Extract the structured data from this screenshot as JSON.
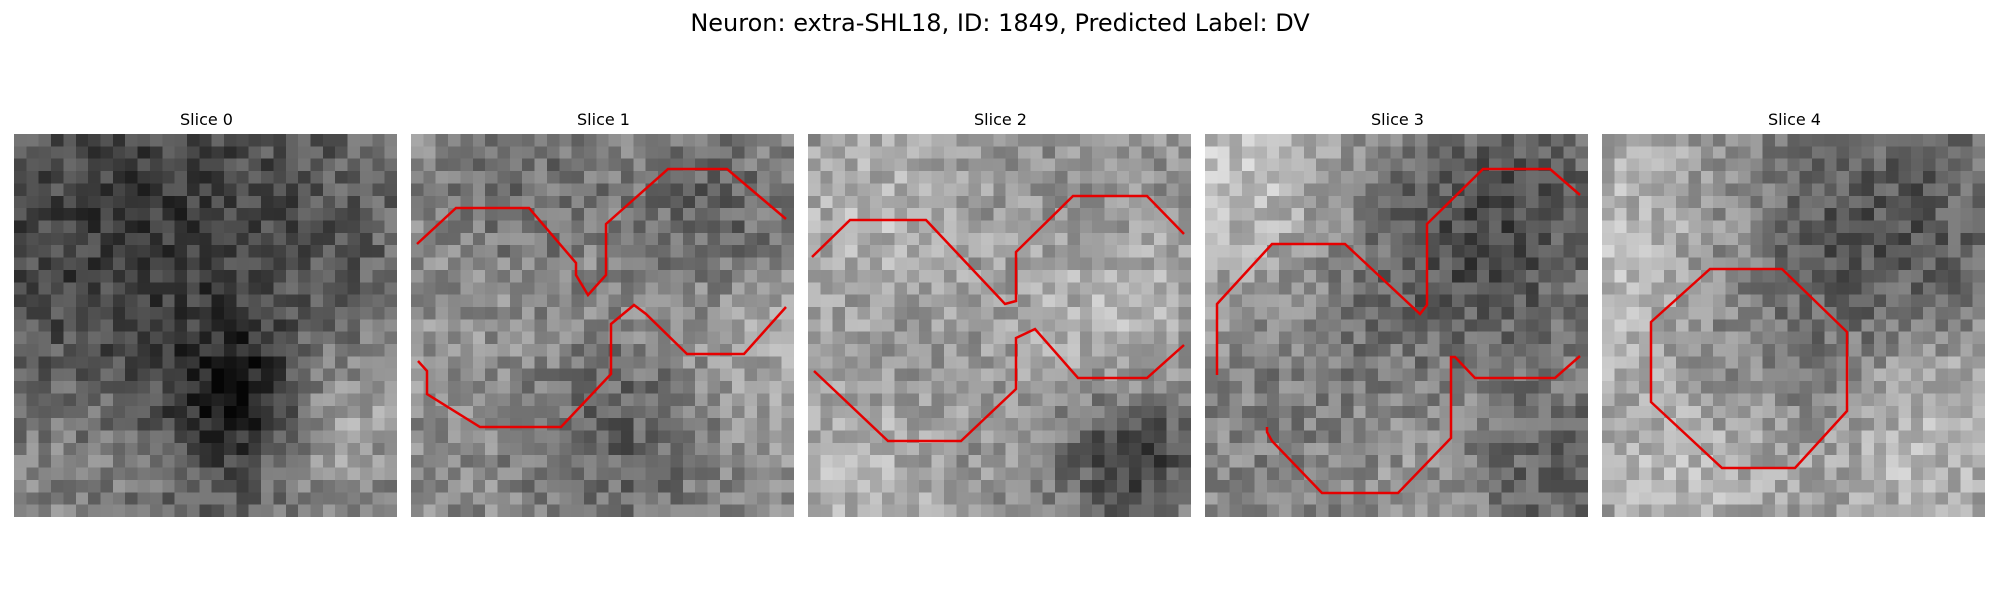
{
  "figure": {
    "title": "Neuron: extra-SHL18, ID: 1849, Predicted Label: DV"
  },
  "panels": [
    {
      "title": "Slice 0",
      "contour_count": 0,
      "contour_color": "#e60000"
    },
    {
      "title": "Slice 1",
      "contour_count": 3,
      "contour_color": "#e60000"
    },
    {
      "title": "Slice 2",
      "contour_count": 3,
      "contour_color": "#e60000"
    },
    {
      "title": "Slice 3",
      "contour_count": 3,
      "contour_color": "#e60000"
    },
    {
      "title": "Slice 4",
      "contour_count": 1,
      "contour_color": "#e60000"
    }
  ],
  "image": {
    "colormap": "grayscale",
    "grid": "31x31 pixels"
  }
}
